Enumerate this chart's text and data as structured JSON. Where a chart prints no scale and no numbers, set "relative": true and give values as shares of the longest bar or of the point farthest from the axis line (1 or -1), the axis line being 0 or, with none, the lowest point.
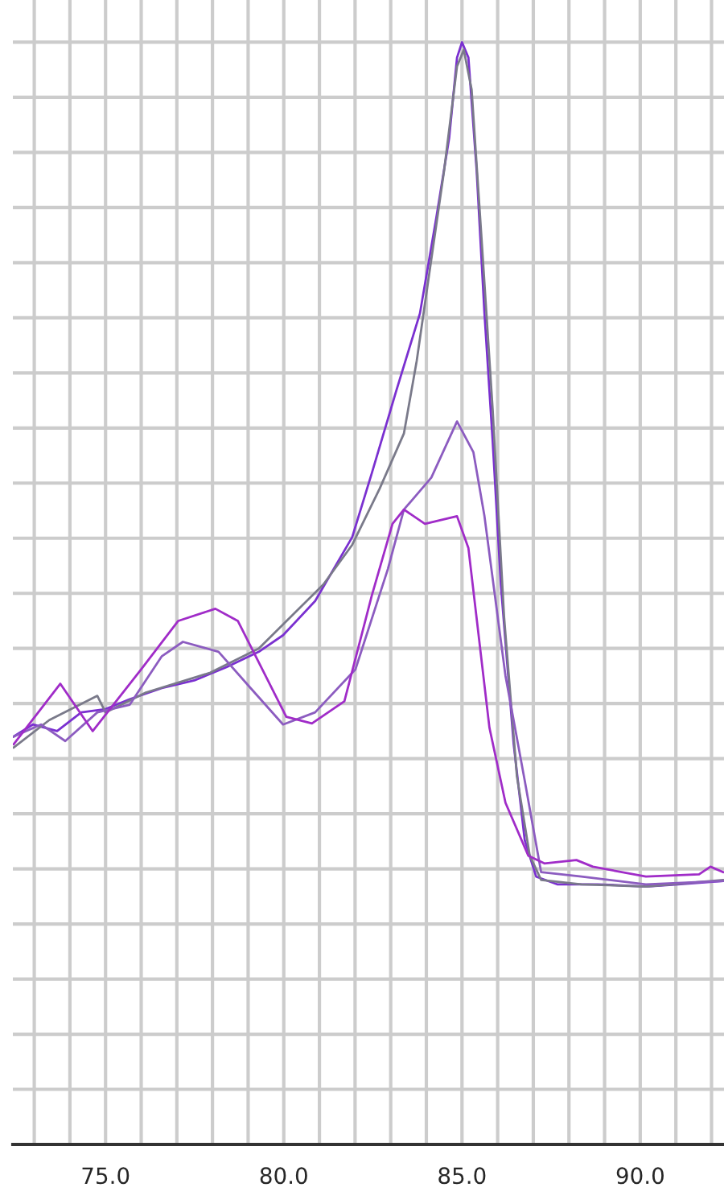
{
  "chart_data": {
    "type": "line",
    "relative": true,
    "grid": true,
    "legend": false,
    "line_style": "solid",
    "marker": "none",
    "xlim": [
      72.4,
      92.35
    ],
    "xticks": [
      {
        "value": 73,
        "label": null
      },
      {
        "value": 74,
        "label": null
      },
      {
        "value": 75,
        "label": "75.0"
      },
      {
        "value": 76,
        "label": null
      },
      {
        "value": 77,
        "label": null
      },
      {
        "value": 78,
        "label": null
      },
      {
        "value": 79,
        "label": null
      },
      {
        "value": 80,
        "label": "80.0"
      },
      {
        "value": 81,
        "label": null
      },
      {
        "value": 82,
        "label": null
      },
      {
        "value": 83,
        "label": null
      },
      {
        "value": 84,
        "label": null
      },
      {
        "value": 85,
        "label": "85.0"
      },
      {
        "value": 86,
        "label": null
      },
      {
        "value": 87,
        "label": null
      },
      {
        "value": 88,
        "label": null
      },
      {
        "value": 89,
        "label": null
      },
      {
        "value": 90,
        "label": "90.0"
      },
      {
        "value": 91,
        "label": null
      },
      {
        "value": 92,
        "label": null
      }
    ],
    "series": [
      {
        "color": "#7a30d0",
        "x": [
          72.42,
          72.96,
          73.64,
          74.32,
          75.0,
          75.68,
          76.58,
          77.49,
          78.39,
          79.3,
          79.98,
          80.88,
          81.92,
          82.47,
          83.14,
          83.82,
          84.28,
          84.64,
          84.86,
          85.0,
          85.18,
          85.41,
          85.63,
          85.86,
          86.09,
          86.45,
          86.76,
          87.08,
          87.67,
          88.8,
          90.16,
          91.06,
          92.33
        ],
        "values": [
          0.37,
          0.381,
          0.375,
          0.392,
          0.395,
          0.404,
          0.414,
          0.421,
          0.433,
          0.447,
          0.462,
          0.493,
          0.551,
          0.609,
          0.682,
          0.754,
          0.841,
          0.913,
          0.986,
          1.0,
          0.986,
          0.884,
          0.754,
          0.638,
          0.508,
          0.363,
          0.276,
          0.243,
          0.236,
          0.236,
          0.234,
          0.236,
          0.239
        ]
      },
      {
        "color": "#7a7a8a",
        "x": [
          72.42,
          73.42,
          74.77,
          75.0,
          76.13,
          77.94,
          79.3,
          81.11,
          81.92,
          82.69,
          83.37,
          83.73,
          84.05,
          84.5,
          84.86,
          85.05,
          85.27,
          85.54,
          85.86,
          86.18,
          86.54,
          86.9,
          87.22,
          88.35,
          90.16,
          92.33
        ],
        "values": [
          0.36,
          0.385,
          0.407,
          0.392,
          0.41,
          0.428,
          0.45,
          0.508,
          0.544,
          0.595,
          0.645,
          0.711,
          0.783,
          0.884,
          0.978,
          0.993,
          0.957,
          0.826,
          0.667,
          0.479,
          0.334,
          0.262,
          0.24,
          0.236,
          0.234,
          0.24
        ]
      },
      {
        "color": "#8c5cc0",
        "x": [
          72.42,
          73.19,
          73.87,
          74.77,
          75.68,
          76.58,
          77.17,
          78.17,
          79.07,
          79.98,
          80.88,
          82.01,
          82.92,
          83.37,
          84.14,
          84.86,
          85.32,
          85.63,
          86.22,
          86.76,
          87.22,
          88.35,
          90.16,
          92.33
        ],
        "values": [
          0.37,
          0.381,
          0.366,
          0.392,
          0.399,
          0.443,
          0.456,
          0.447,
          0.414,
          0.381,
          0.392,
          0.431,
          0.522,
          0.576,
          0.605,
          0.656,
          0.628,
          0.57,
          0.425,
          0.33,
          0.247,
          0.243,
          0.236,
          0.239
        ]
      },
      {
        "color": "#a02cc8",
        "x": [
          72.42,
          73.73,
          74.64,
          76.0,
          77.04,
          78.08,
          78.71,
          80.07,
          80.79,
          81.7,
          82.47,
          83.05,
          83.37,
          83.96,
          84.86,
          85.18,
          85.77,
          86.22,
          86.86,
          87.31,
          88.21,
          88.67,
          90.16,
          91.65,
          91.97,
          92.33
        ],
        "values": [
          0.363,
          0.418,
          0.375,
          0.431,
          0.475,
          0.486,
          0.475,
          0.388,
          0.382,
          0.402,
          0.498,
          0.563,
          0.576,
          0.563,
          0.57,
          0.541,
          0.378,
          0.31,
          0.262,
          0.255,
          0.258,
          0.252,
          0.243,
          0.245,
          0.252,
          0.247
        ]
      }
    ]
  }
}
